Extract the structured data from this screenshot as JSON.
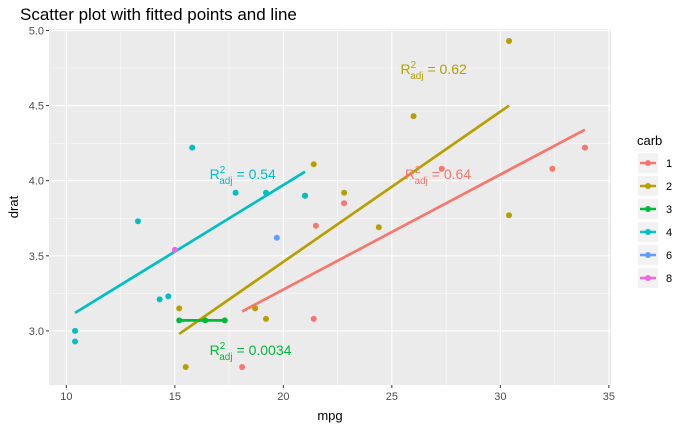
{
  "chart_data": {
    "type": "scatter",
    "title": "Scatter plot with fitted points and line",
    "xlabel": "mpg",
    "ylabel": "drat",
    "xlim": [
      9.2,
      35.1
    ],
    "ylim": [
      2.64,
      5.01
    ],
    "x_ticks": [
      10,
      15,
      20,
      25,
      30,
      35
    ],
    "y_ticks": [
      3.0,
      3.5,
      4.0,
      4.5,
      5.0
    ],
    "y_tick_labels": [
      "3.0",
      "3.5",
      "4.0",
      "4.5",
      "5.0"
    ],
    "grid": true,
    "legend": {
      "title": "carb",
      "position": "right",
      "entries": [
        "1",
        "2",
        "3",
        "4",
        "6",
        "8"
      ]
    },
    "series": [
      {
        "name": "1",
        "color": "#F8766D",
        "points": [
          [
            21.4,
            3.08
          ],
          [
            18.1,
            2.76
          ],
          [
            22.8,
            3.85
          ],
          [
            32.4,
            4.08
          ],
          [
            33.9,
            4.22
          ],
          [
            21.5,
            3.7
          ],
          [
            27.3,
            4.08
          ]
        ],
        "fit": [
          [
            18.1,
            3.13
          ],
          [
            33.9,
            4.34
          ]
        ],
        "annotation": {
          "prefix": "R",
          "sup": "2",
          "sub": "adj",
          "text": " = 0.64",
          "x": 25.6,
          "y": 4.01
        }
      },
      {
        "name": "2",
        "color": "#B79F00",
        "points": [
          [
            18.7,
            3.15
          ],
          [
            22.8,
            3.92
          ],
          [
            24.4,
            3.69
          ],
          [
            19.2,
            3.08
          ],
          [
            30.4,
            4.93
          ],
          [
            15.5,
            2.76
          ],
          [
            15.2,
            3.15
          ],
          [
            30.4,
            3.77
          ],
          [
            26.0,
            4.43
          ],
          [
            21.4,
            4.11
          ]
        ],
        "fit": [
          [
            15.2,
            2.98
          ],
          [
            30.4,
            4.5
          ]
        ],
        "annotation": {
          "prefix": "R",
          "sup": "2",
          "sub": "adj",
          "text": " = 0.62",
          "x": 25.4,
          "y": 4.71
        }
      },
      {
        "name": "3",
        "color": "#00BA38",
        "points": [
          [
            16.4,
            3.07
          ],
          [
            17.3,
            3.07
          ],
          [
            15.2,
            3.07
          ]
        ],
        "fit": [
          [
            15.2,
            3.07
          ],
          [
            17.3,
            3.07
          ]
        ],
        "annotation": {
          "prefix": "R",
          "sup": "2",
          "sub": "adj",
          "text": " = 0.0034",
          "x": 16.6,
          "y": 2.84
        }
      },
      {
        "name": "4",
        "color": "#00BFC4",
        "points": [
          [
            21.0,
            3.9
          ],
          [
            21.0,
            3.9
          ],
          [
            14.3,
            3.21
          ],
          [
            19.2,
            3.92
          ],
          [
            17.8,
            3.92
          ],
          [
            10.4,
            2.93
          ],
          [
            10.4,
            3.0
          ],
          [
            14.7,
            3.23
          ],
          [
            13.3,
            3.73
          ],
          [
            15.8,
            4.22
          ]
        ],
        "fit": [
          [
            10.4,
            3.12
          ],
          [
            21.0,
            4.06
          ]
        ],
        "annotation": {
          "prefix": "R",
          "sup": "2",
          "sub": "adj",
          "text": " = 0.54",
          "x": 16.6,
          "y": 4.01
        }
      },
      {
        "name": "6",
        "color": "#619CFF",
        "points": [
          [
            19.7,
            3.62
          ]
        ],
        "fit": null,
        "annotation": null
      },
      {
        "name": "8",
        "color": "#F564E3",
        "points": [
          [
            15.0,
            3.54
          ]
        ],
        "fit": null,
        "annotation": null
      }
    ]
  }
}
